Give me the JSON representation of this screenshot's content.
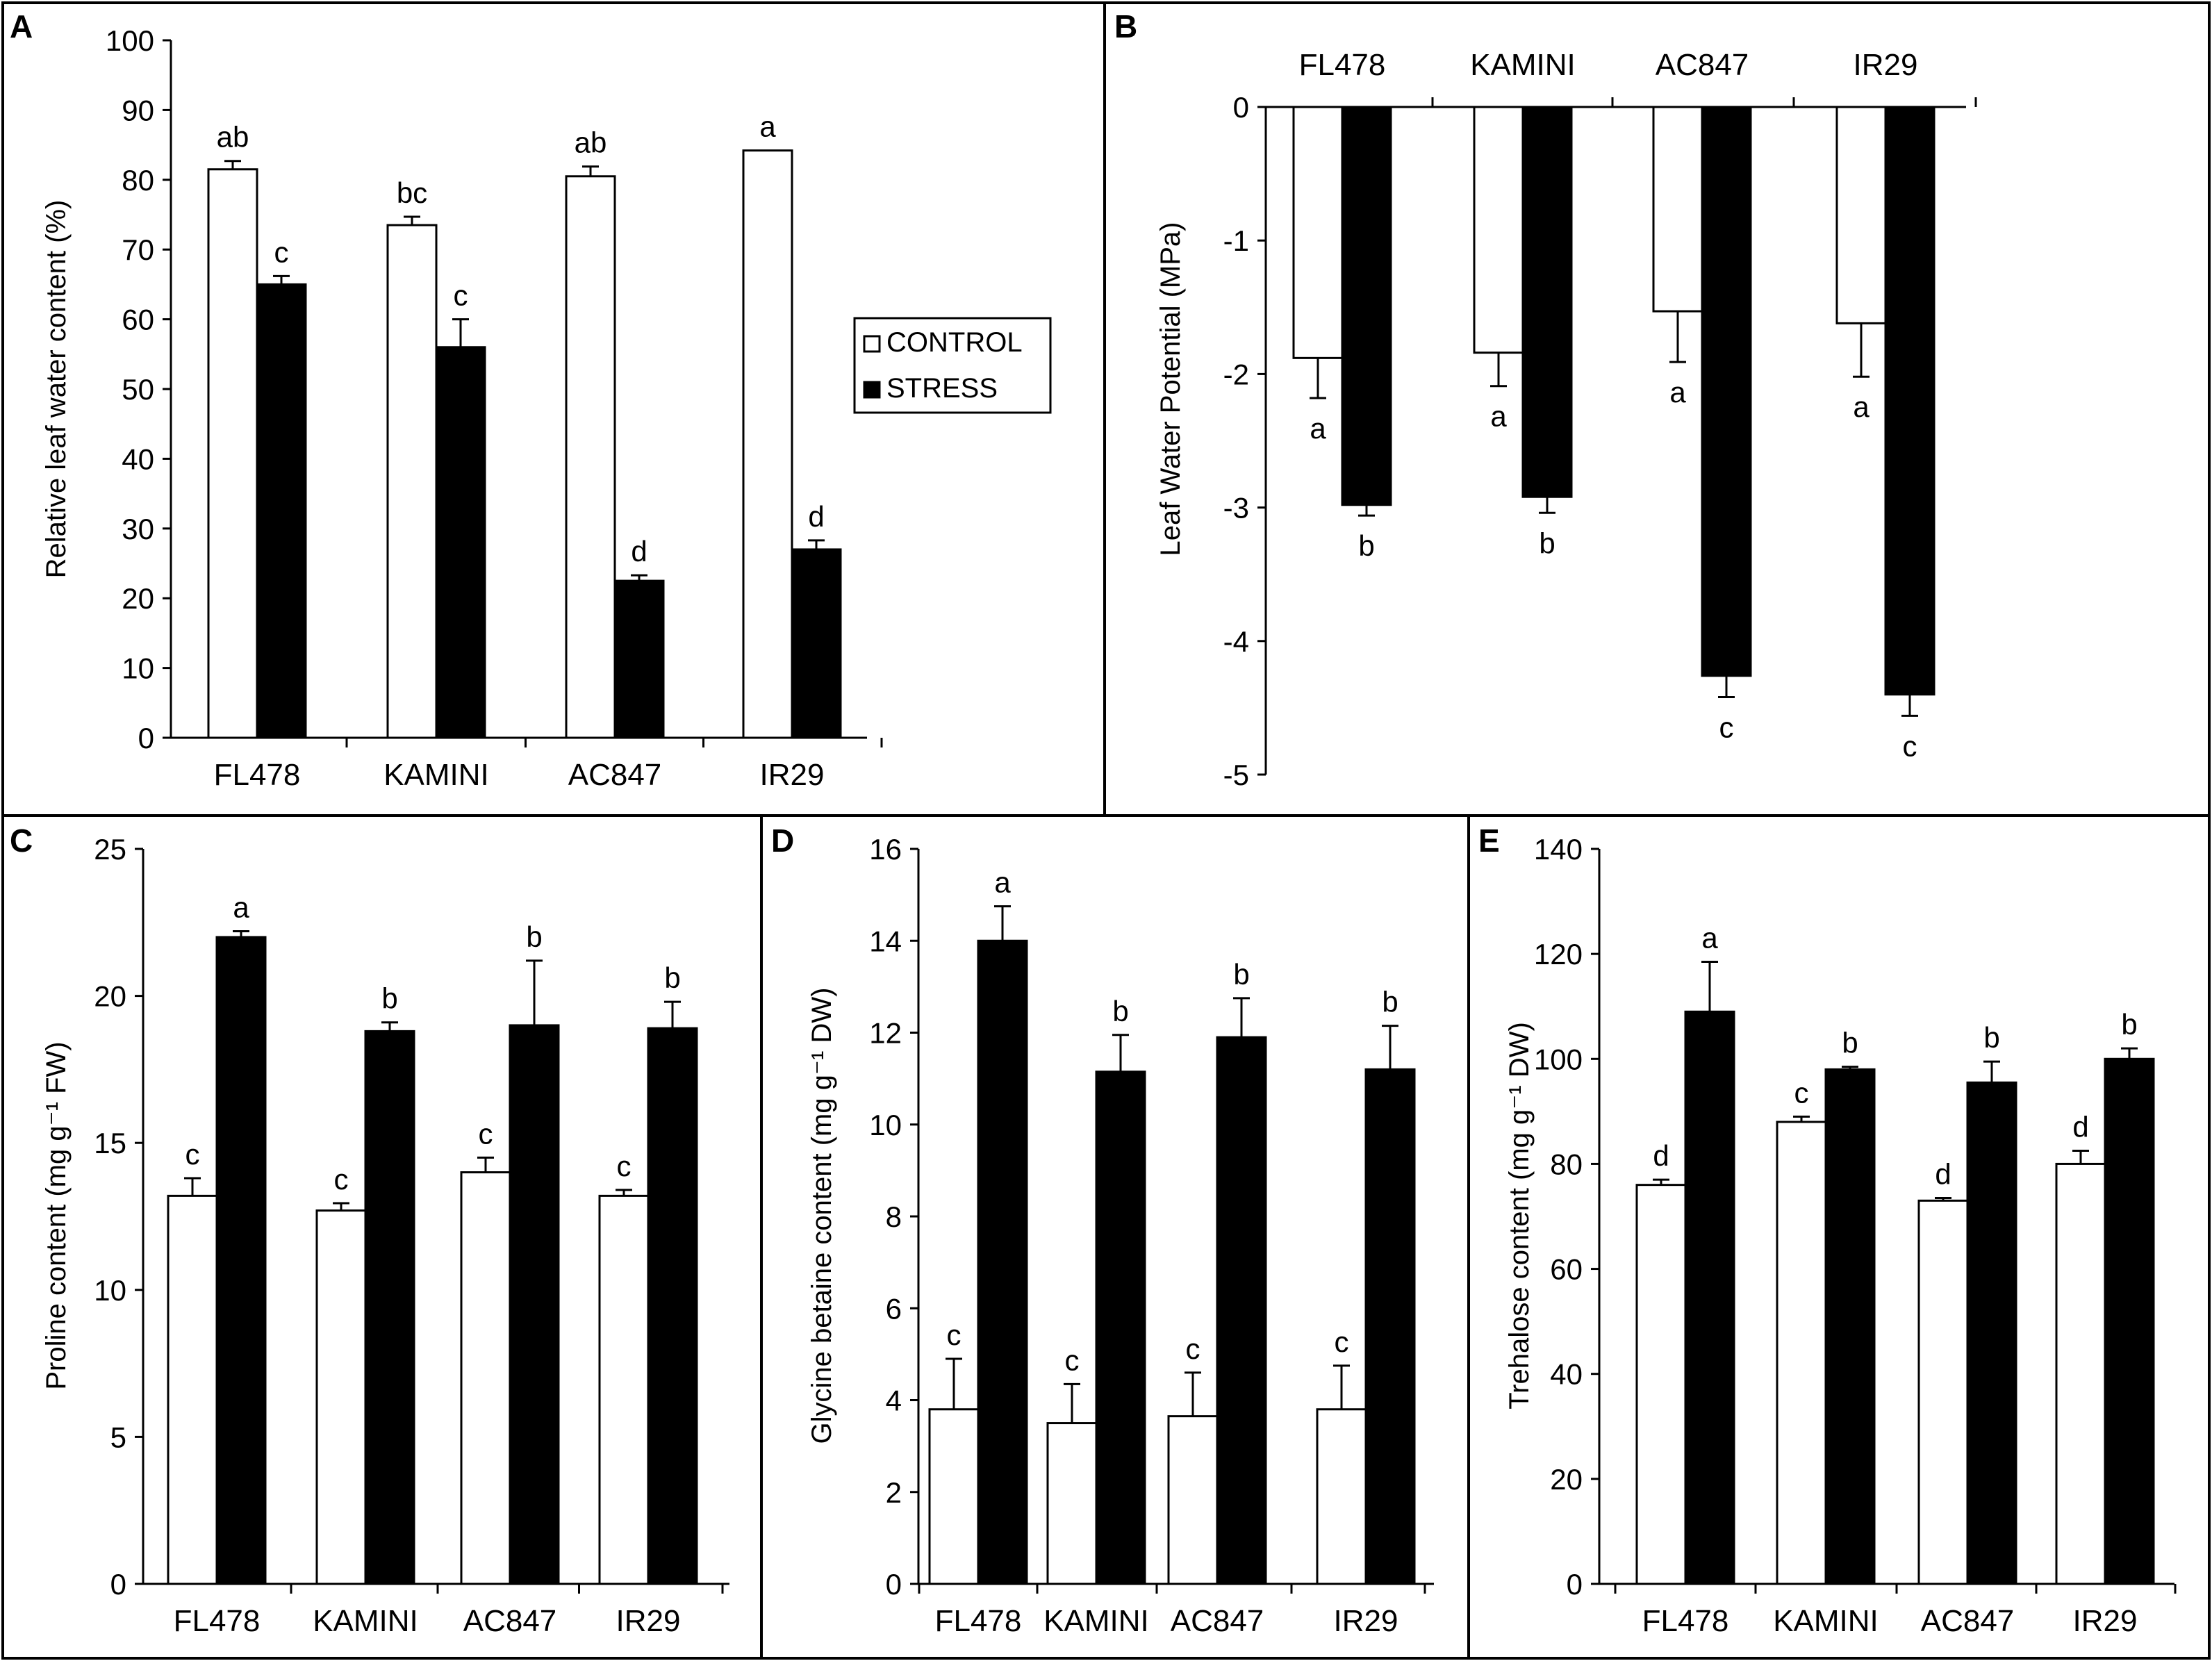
{
  "chart_data": [
    {
      "panel": "A",
      "type": "bar",
      "categories": [
        "FL478",
        "KAMINI",
        "AC847",
        "IR29"
      ],
      "ylabel": "Relative leaf water content (%)",
      "ylim": [
        0,
        100
      ],
      "yticks": [
        0,
        10,
        20,
        30,
        40,
        50,
        60,
        70,
        80,
        90,
        100
      ],
      "legend": [
        "CONTROL",
        "STRESS"
      ],
      "series": [
        {
          "name": "CONTROL",
          "values": [
            81.5,
            73.5,
            80.5,
            84.2
          ],
          "errors": [
            1.2,
            1.2,
            1.4,
            0.0
          ],
          "labels": [
            "ab",
            "bc",
            "ab",
            "a"
          ]
        },
        {
          "name": "STRESS",
          "values": [
            65.0,
            56.0,
            22.5,
            27.0
          ],
          "errors": [
            1.2,
            4.0,
            0.8,
            1.3
          ],
          "labels": [
            "c",
            "c",
            "d",
            "d"
          ]
        }
      ]
    },
    {
      "panel": "B",
      "type": "bar",
      "categories": [
        "FL478",
        "KAMINI",
        "AC847",
        "IR29"
      ],
      "ylabel": "Leaf Water Potential (MPa)",
      "ylim": [
        -5,
        0
      ],
      "yticks": [
        0,
        -1,
        -2,
        -3,
        -4,
        -5
      ],
      "series": [
        {
          "name": "CONTROL",
          "values": [
            -1.88,
            -1.84,
            -1.53,
            -1.62
          ],
          "errors": [
            0.3,
            0.25,
            0.38,
            0.4
          ],
          "labels": [
            "a",
            "a",
            "a",
            "a"
          ]
        },
        {
          "name": "STRESS",
          "values": [
            -2.98,
            -2.92,
            -4.26,
            -4.4
          ],
          "errors": [
            0.08,
            0.12,
            0.16,
            0.16
          ],
          "labels": [
            "b",
            "b",
            "c",
            "c"
          ]
        }
      ]
    },
    {
      "panel": "C",
      "type": "bar",
      "categories": [
        "FL478",
        "KAMINI",
        "AC847",
        "IR29"
      ],
      "ylabel": "Proline content (mg g⁻¹ FW)",
      "ylim": [
        0,
        25
      ],
      "yticks": [
        0,
        5,
        10,
        15,
        20,
        25
      ],
      "series": [
        {
          "name": "CONTROL",
          "values": [
            13.2,
            12.7,
            14.0,
            13.2
          ],
          "errors": [
            0.6,
            0.25,
            0.5,
            0.2
          ],
          "labels": [
            "c",
            "c",
            "c",
            "c"
          ]
        },
        {
          "name": "STRESS",
          "values": [
            22.0,
            18.8,
            19.0,
            18.9
          ],
          "errors": [
            0.2,
            0.3,
            2.2,
            0.9
          ],
          "labels": [
            "a",
            "b",
            "b",
            "b"
          ]
        }
      ]
    },
    {
      "panel": "D",
      "type": "bar",
      "categories": [
        "FL478",
        "KAMINI",
        "AC847",
        "IR29"
      ],
      "ylabel": "Glycine betaine content (mg g⁻¹ DW)",
      "ylim": [
        0,
        16
      ],
      "yticks": [
        0,
        2,
        4,
        6,
        8,
        10,
        12,
        14,
        16
      ],
      "series": [
        {
          "name": "CONTROL",
          "values": [
            3.8,
            3.5,
            3.65,
            3.8
          ],
          "errors": [
            1.1,
            0.85,
            0.95,
            0.95
          ],
          "labels": [
            "c",
            "c",
            "c",
            "c"
          ]
        },
        {
          "name": "STRESS",
          "values": [
            14.0,
            11.15,
            11.9,
            11.2
          ],
          "errors": [
            0.75,
            0.8,
            0.85,
            0.95
          ],
          "labels": [
            "a",
            "b",
            "b",
            "b"
          ]
        }
      ]
    },
    {
      "panel": "E",
      "type": "bar",
      "categories": [
        "FL478",
        "KAMINI",
        "AC847",
        "IR29"
      ],
      "ylabel": "Trehalose content (mg g⁻¹ DW)",
      "ylim": [
        0,
        140
      ],
      "yticks": [
        0,
        20,
        40,
        60,
        80,
        100,
        120,
        140
      ],
      "series": [
        {
          "name": "CONTROL",
          "values": [
            76.0,
            88.0,
            73.0,
            80.0
          ],
          "errors": [
            1.0,
            1.0,
            0.5,
            2.5
          ],
          "labels": [
            "d",
            "c",
            "d",
            "d"
          ]
        },
        {
          "name": "STRESS",
          "values": [
            109.0,
            98.0,
            95.5,
            100.0
          ],
          "errors": [
            9.5,
            0.5,
            4.0,
            2.0
          ],
          "labels": [
            "a",
            "b",
            "b",
            "b"
          ]
        }
      ]
    }
  ]
}
